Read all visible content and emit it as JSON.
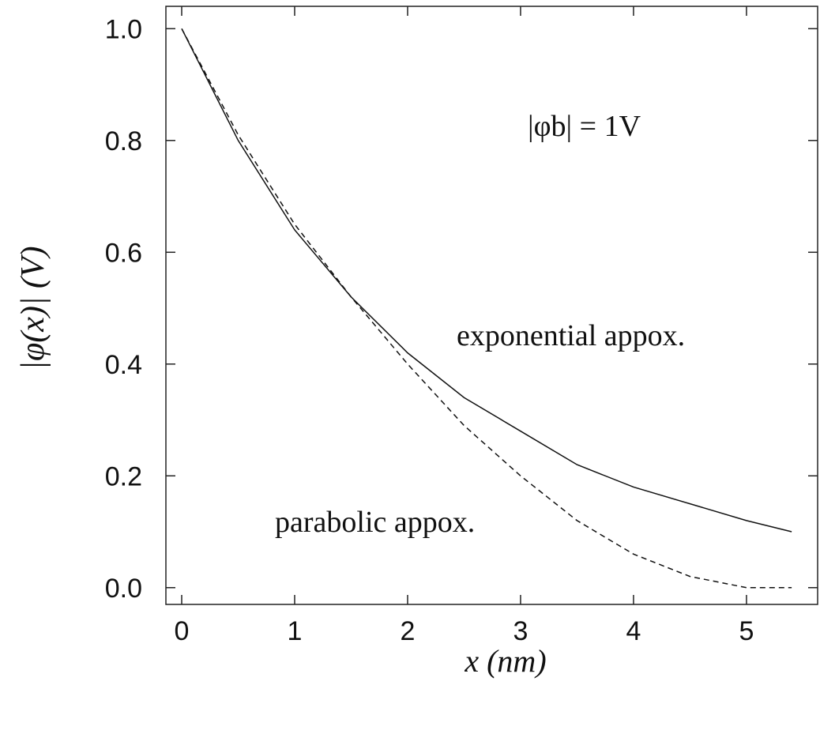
{
  "chart_data": {
    "type": "line",
    "y_label": "|φ(x)| (V)",
    "x_label": "x (nm)",
    "annotations": [
      "|φb| = 1V",
      "exponential appox.",
      "parabolic appox."
    ],
    "x": [
      0,
      0.5,
      1,
      1.5,
      2,
      2.5,
      3,
      3.5,
      4,
      4.5,
      5,
      5.4
    ],
    "series": [
      {
        "color": "#111111",
        "dashed": false,
        "values": [
          1.0,
          0.8,
          0.64,
          0.52,
          0.42,
          0.34,
          0.28,
          0.22,
          0.18,
          0.15,
          0.12,
          0.1
        ]
      },
      {
        "color": "#111111",
        "dashed": true,
        "values": [
          1.0,
          0.81,
          0.65,
          0.52,
          0.4,
          0.29,
          0.2,
          0.12,
          0.06,
          0.02,
          0.0,
          0.0
        ]
      }
    ],
    "xlim": [
      -0.14,
      5.63
    ],
    "ylim": [
      -0.03,
      1.04
    ],
    "xticks": [
      0,
      1,
      2,
      3,
      4,
      5
    ],
    "yticks": [
      {
        "value": 0,
        "label": "0.0"
      },
      0.2,
      0.4,
      0.6,
      0.8,
      {
        "value": 1,
        "label": "1.0"
      }
    ]
  }
}
